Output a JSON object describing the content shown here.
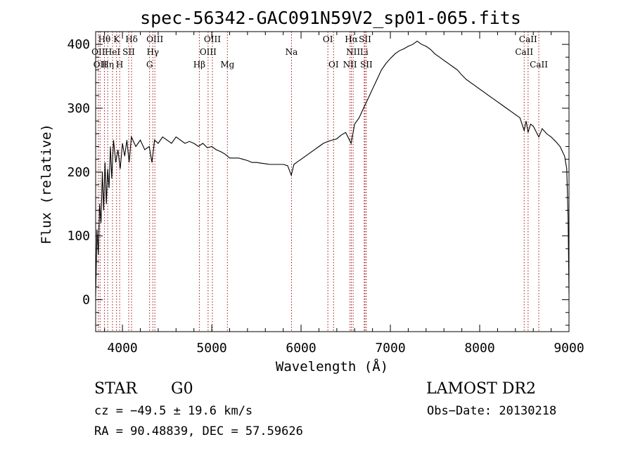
{
  "chart_data": {
    "type": "line",
    "title": "spec-56342-GAC091N59V2_sp01-065.fits",
    "xlabel": "Wavelength (Å)",
    "ylabel": "Flux (relative)",
    "xlim": [
      3700,
      9000
    ],
    "ylim": [
      -50,
      420
    ],
    "xticks": [
      4000,
      5000,
      6000,
      7000,
      8000,
      9000
    ],
    "yticks": [
      0,
      100,
      200,
      300,
      400
    ],
    "line_color": "#000000",
    "marker_color": "#a01010",
    "series": [
      {
        "values": [
          [
            3700,
            5
          ],
          [
            3715,
            110
          ],
          [
            3730,
            70
          ],
          [
            3745,
            150
          ],
          [
            3760,
            120
          ],
          [
            3775,
            200
          ],
          [
            3790,
            140
          ],
          [
            3805,
            215
          ],
          [
            3820,
            150
          ],
          [
            3835,
            205
          ],
          [
            3850,
            175
          ],
          [
            3865,
            240
          ],
          [
            3880,
            190
          ],
          [
            3900,
            250
          ],
          [
            3925,
            215
          ],
          [
            3950,
            235
          ],
          [
            3975,
            205
          ],
          [
            4000,
            245
          ],
          [
            4025,
            225
          ],
          [
            4050,
            250
          ],
          [
            4075,
            215
          ],
          [
            4100,
            255
          ],
          [
            4150,
            240
          ],
          [
            4200,
            250
          ],
          [
            4250,
            235
          ],
          [
            4300,
            240
          ],
          [
            4330,
            215
          ],
          [
            4360,
            250
          ],
          [
            4400,
            245
          ],
          [
            4450,
            255
          ],
          [
            4500,
            250
          ],
          [
            4550,
            245
          ],
          [
            4600,
            255
          ],
          [
            4650,
            250
          ],
          [
            4700,
            245
          ],
          [
            4750,
            248
          ],
          [
            4800,
            245
          ],
          [
            4850,
            240
          ],
          [
            4900,
            245
          ],
          [
            4950,
            238
          ],
          [
            5000,
            240
          ],
          [
            5050,
            235
          ],
          [
            5100,
            232
          ],
          [
            5150,
            228
          ],
          [
            5200,
            222
          ],
          [
            5250,
            222
          ],
          [
            5300,
            222
          ],
          [
            5350,
            220
          ],
          [
            5400,
            218
          ],
          [
            5450,
            215
          ],
          [
            5500,
            215
          ],
          [
            5550,
            214
          ],
          [
            5600,
            213
          ],
          [
            5650,
            212
          ],
          [
            5700,
            212
          ],
          [
            5750,
            212
          ],
          [
            5800,
            212
          ],
          [
            5850,
            210
          ],
          [
            5890,
            195
          ],
          [
            5920,
            212
          ],
          [
            5950,
            215
          ],
          [
            6000,
            220
          ],
          [
            6050,
            225
          ],
          [
            6100,
            230
          ],
          [
            6150,
            235
          ],
          [
            6200,
            240
          ],
          [
            6250,
            245
          ],
          [
            6300,
            248
          ],
          [
            6350,
            250
          ],
          [
            6400,
            252
          ],
          [
            6450,
            258
          ],
          [
            6500,
            262
          ],
          [
            6560,
            245
          ],
          [
            6600,
            275
          ],
          [
            6650,
            285
          ],
          [
            6700,
            300
          ],
          [
            6750,
            315
          ],
          [
            6800,
            330
          ],
          [
            6850,
            345
          ],
          [
            6900,
            360
          ],
          [
            6950,
            370
          ],
          [
            7000,
            378
          ],
          [
            7050,
            385
          ],
          [
            7100,
            390
          ],
          [
            7150,
            393
          ],
          [
            7200,
            397
          ],
          [
            7250,
            400
          ],
          [
            7300,
            405
          ],
          [
            7350,
            400
          ],
          [
            7400,
            397
          ],
          [
            7450,
            392
          ],
          [
            7500,
            385
          ],
          [
            7550,
            380
          ],
          [
            7600,
            375
          ],
          [
            7650,
            370
          ],
          [
            7700,
            365
          ],
          [
            7750,
            360
          ],
          [
            7800,
            352
          ],
          [
            7850,
            345
          ],
          [
            7900,
            340
          ],
          [
            7950,
            335
          ],
          [
            8000,
            330
          ],
          [
            8050,
            325
          ],
          [
            8100,
            320
          ],
          [
            8150,
            315
          ],
          [
            8200,
            310
          ],
          [
            8250,
            305
          ],
          [
            8300,
            300
          ],
          [
            8350,
            295
          ],
          [
            8400,
            290
          ],
          [
            8450,
            285
          ],
          [
            8498,
            265
          ],
          [
            8520,
            280
          ],
          [
            8542,
            262
          ],
          [
            8570,
            275
          ],
          [
            8600,
            272
          ],
          [
            8662,
            255
          ],
          [
            8700,
            268
          ],
          [
            8750,
            260
          ],
          [
            8800,
            255
          ],
          [
            8850,
            248
          ],
          [
            8900,
            240
          ],
          [
            8950,
            225
          ],
          [
            8975,
            205
          ],
          [
            8990,
            130
          ],
          [
            9000,
            10
          ]
        ]
      }
    ],
    "line_markers": [
      {
        "wl": 3730,
        "label": "OII",
        "row": 1
      },
      {
        "wl": 3750,
        "label": "OII",
        "row": 2
      },
      {
        "wl": 3798,
        "label": "Hθ",
        "row": 0
      },
      {
        "wl": 3835,
        "label": "Hη",
        "row": 2
      },
      {
        "wl": 3889,
        "label": "HeI",
        "row": 1
      },
      {
        "wl": 3934,
        "label": "K",
        "row": 0
      },
      {
        "wl": 3969,
        "label": "H",
        "row": 2
      },
      {
        "wl": 4070,
        "label": "SII",
        "row": 1
      },
      {
        "wl": 4102,
        "label": "Hδ",
        "row": 0
      },
      {
        "wl": 4304,
        "label": "G",
        "row": 2
      },
      {
        "wl": 4340,
        "label": "Hγ",
        "row": 1
      },
      {
        "wl": 4363,
        "label": "OIII",
        "row": 0
      },
      {
        "wl": 4861,
        "label": "Hβ",
        "row": 2
      },
      {
        "wl": 4959,
        "label": "OIII",
        "row": 1
      },
      {
        "wl": 5007,
        "label": "OIII",
        "row": 0
      },
      {
        "wl": 5175,
        "label": "Mg",
        "row": 2
      },
      {
        "wl": 5893,
        "label": "Na",
        "row": 1
      },
      {
        "wl": 6300,
        "label": "OI",
        "row": 0
      },
      {
        "wl": 6364,
        "label": "OI",
        "row": 2
      },
      {
        "wl": 6548,
        "label": "NII",
        "row": 2
      },
      {
        "wl": 6563,
        "label": "Hα",
        "row": 0
      },
      {
        "wl": 6583,
        "label": "NII",
        "row": 1
      },
      {
        "wl": 6707,
        "label": "Li",
        "row": 1
      },
      {
        "wl": 6716,
        "label": "SII",
        "row": 0
      },
      {
        "wl": 6731,
        "label": "SII",
        "row": 2
      },
      {
        "wl": 8498,
        "label": "CaII",
        "row": 1
      },
      {
        "wl": 8542,
        "label": "CaII",
        "row": 0
      },
      {
        "wl": 8662,
        "label": "CaII",
        "row": 2
      }
    ]
  },
  "footer": {
    "object_class": "STAR",
    "subclass": "G0",
    "survey": "LAMOST DR2",
    "cz_line": "cz = −49.5 ± 19.6 km/s",
    "obs_date": "Obs−Date: 20130218",
    "coords": "RA =  90.48839, DEC =  57.59626"
  }
}
